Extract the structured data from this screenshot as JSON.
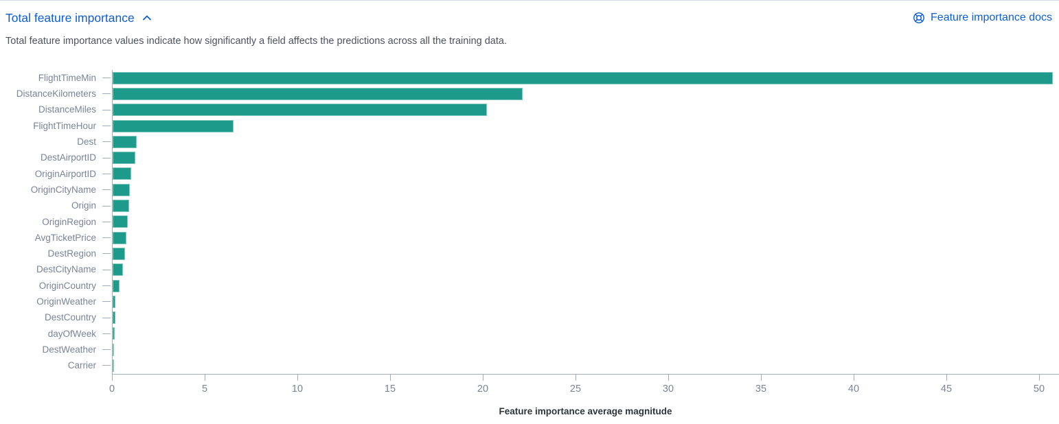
{
  "header": {
    "title": "Total feature importance",
    "docs_link": "Feature importance docs",
    "description": "Total feature importance values indicate how significantly a field affects the predictions across all the training data."
  },
  "colors": {
    "link_blue": "#0e5dd3",
    "bar_teal": "#1d9a89",
    "axis_line": "#a3abbf",
    "axis_label_text": "#7b8397",
    "description_text": "#4c525e",
    "axis_title_text": "#2f3338"
  },
  "chart_data": {
    "type": "bar",
    "orientation": "horizontal",
    "title": "Total feature importance",
    "xlabel": "Feature importance average magnitude",
    "ylabel": "",
    "grid": false,
    "legend": "none",
    "xlim": [
      0,
      51
    ],
    "xticks": [
      0,
      5,
      10,
      15,
      20,
      25,
      30,
      35,
      40,
      45,
      50
    ],
    "categories": [
      "FlightTimeMin",
      "DistanceKilometers",
      "DistanceMiles",
      "FlightTimeHour",
      "Dest",
      "DestAirportID",
      "OriginAirportID",
      "OriginCityName",
      "Origin",
      "OriginRegion",
      "AvgTicketPrice",
      "DestRegion",
      "DestCityName",
      "OriginCountry",
      "OriginWeather",
      "DestCountry",
      "dayOfWeek",
      "DestWeather",
      "Carrier"
    ],
    "values": [
      50.7,
      22.1,
      20.2,
      6.5,
      1.3,
      1.22,
      1.0,
      0.94,
      0.9,
      0.82,
      0.75,
      0.67,
      0.55,
      0.36,
      0.15,
      0.13,
      0.11,
      0.09,
      0.07
    ]
  }
}
